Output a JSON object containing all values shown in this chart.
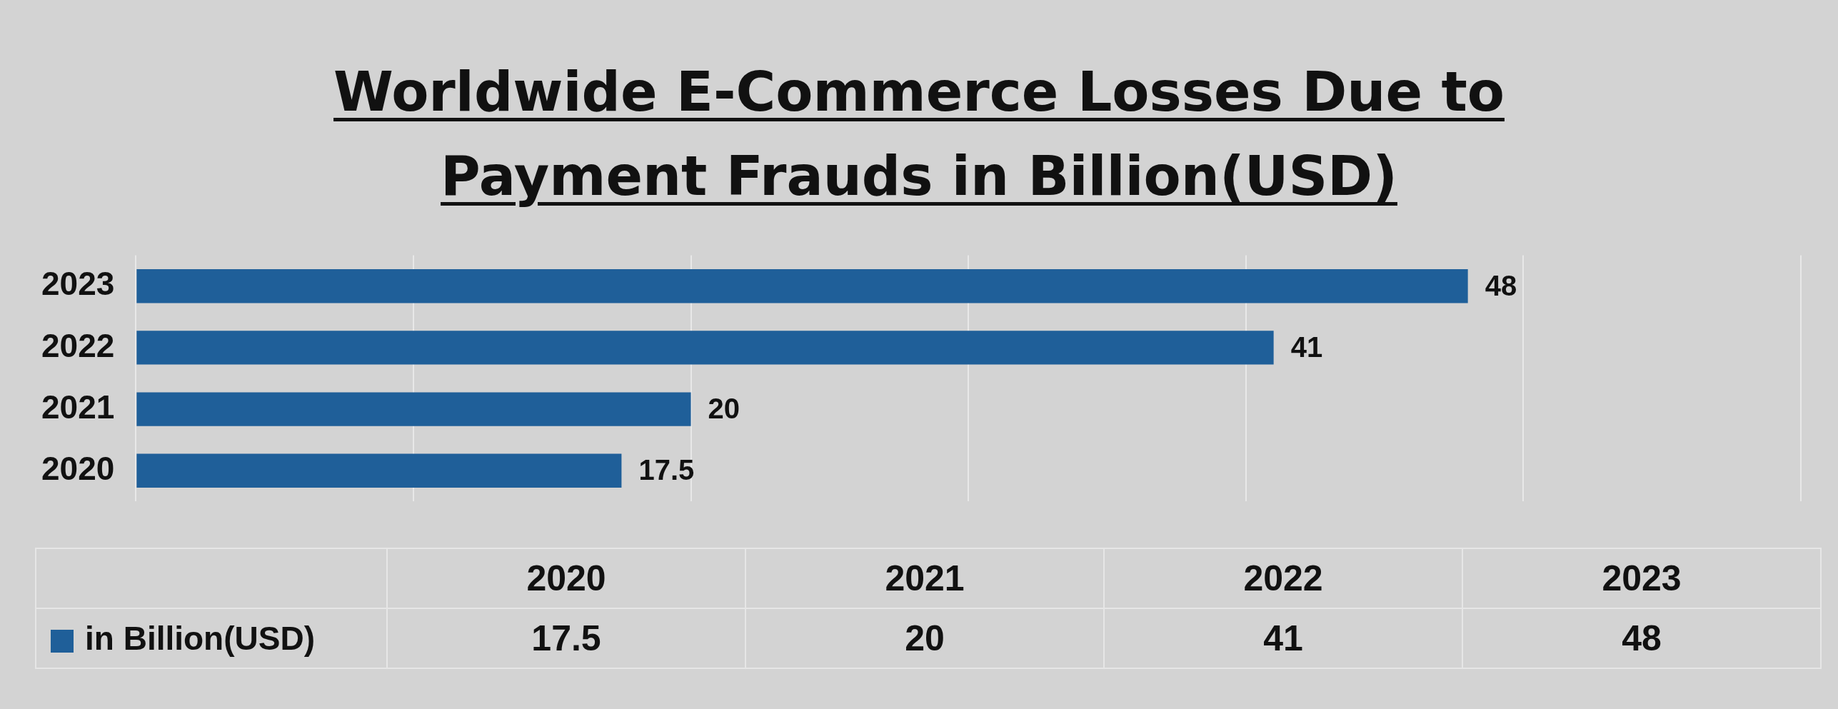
{
  "chart_data": {
    "type": "bar",
    "orientation": "horizontal",
    "title": "Worldwide E-Commerce Losses Due to Payment Frauds in Billion(USD)",
    "categories": [
      "2023",
      "2022",
      "2021",
      "2020"
    ],
    "series": [
      {
        "name": "in Billion(USD)",
        "color": "#1f5f99",
        "values": [
          48,
          41,
          20,
          17.5
        ],
        "value_labels": [
          "48",
          "41",
          "20",
          "17.5"
        ]
      }
    ],
    "xlim": [
      0,
      60
    ],
    "xticks": [
      {
        "value": 0,
        "label": null
      },
      {
        "value": 10,
        "label": null
      },
      {
        "value": 20,
        "label": null
      },
      {
        "value": 30,
        "label": null
      },
      {
        "value": 40,
        "label": null
      },
      {
        "value": 50,
        "label": null
      },
      {
        "value": 60,
        "label": null
      }
    ],
    "grid": "x",
    "tick_labels": "y",
    "legend": "bottom"
  }
}
